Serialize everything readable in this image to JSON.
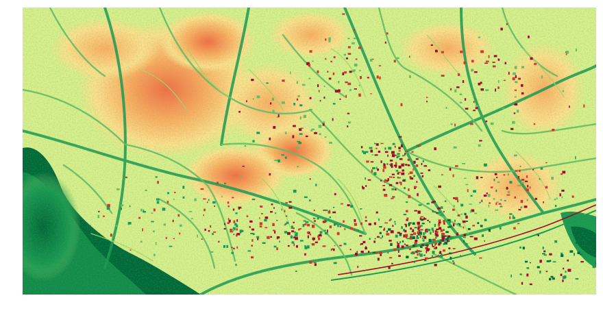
{
  "map": {
    "type": "raster-classification",
    "palette": [
      "#a50026",
      "#d73027",
      "#f46d43",
      "#fdae61",
      "#fee08b",
      "#d9ef8b",
      "#a6d96a",
      "#66bd63",
      "#1a9850",
      "#006837"
    ],
    "description_hidden": false
  }
}
